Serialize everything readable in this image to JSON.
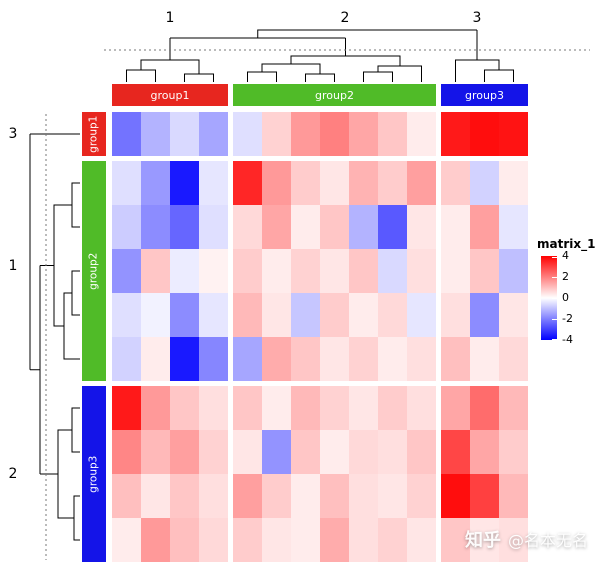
{
  "clusters": {
    "column": [
      "1",
      "2",
      "3"
    ],
    "row": [
      "3",
      "1",
      "2"
    ]
  },
  "column_annotation": {
    "groups": [
      {
        "label": "group1",
        "color": "#e7261f",
        "columns": 4
      },
      {
        "label": "group2",
        "color": "#50bb28",
        "columns": 7
      },
      {
        "label": "group3",
        "color": "#1414e8",
        "columns": 3
      }
    ]
  },
  "row_annotation": {
    "groups": [
      {
        "label": "group1",
        "color": "#e7261f",
        "rows": 1
      },
      {
        "label": "group2",
        "color": "#50bb28",
        "rows": 5
      },
      {
        "label": "group3",
        "color": "#1414e8",
        "rows": 4
      }
    ]
  },
  "legend": {
    "title": "matrix_1",
    "ticks": [
      4,
      2,
      0,
      -2,
      -4
    ],
    "max_color": "#FF0000",
    "mid_color": "#FFFFFF",
    "min_color": "#0000FF"
  },
  "watermark": {
    "brand": "知乎",
    "handle": "@名本无名"
  },
  "chart_data": {
    "type": "heatmap",
    "title": "",
    "legend_title": "matrix_1",
    "value_range": [
      -4,
      4
    ],
    "grid": false,
    "legend_position": "right",
    "row_slices": [
      {
        "name": "group1",
        "rows": 1
      },
      {
        "name": "group2",
        "rows": 5
      },
      {
        "name": "group3",
        "rows": 4
      }
    ],
    "column_slices": [
      {
        "name": "group1",
        "columns": 4
      },
      {
        "name": "group2",
        "columns": 7
      },
      {
        "name": "group3",
        "columns": 3
      }
    ],
    "color_scale": {
      "min": -4,
      "min_color": "#0000FF",
      "mid": 0,
      "mid_color": "#FFFFFF",
      "max": 4,
      "max_color": "#FF0000"
    },
    "matrix": [
      [
        -2.2,
        -1.2,
        -0.6,
        -1.4,
        -0.5,
        0.7,
        1.6,
        2.0,
        1.4,
        0.9,
        0.3,
        3.6,
        3.8,
        3.7
      ],
      [
        -0.5,
        -1.6,
        -3.6,
        -0.4,
        3.4,
        1.6,
        0.8,
        0.4,
        1.2,
        0.8,
        1.5,
        0.8,
        -0.7,
        0.3
      ],
      [
        -0.8,
        -1.8,
        -2.4,
        -0.5,
        0.6,
        1.4,
        0.3,
        0.9,
        -1.2,
        -2.6,
        0.4,
        0.3,
        1.5,
        -0.4
      ],
      [
        -1.7,
        0.9,
        -0.3,
        0.2,
        0.8,
        0.3,
        0.7,
        0.4,
        0.9,
        -0.6,
        0.5,
        0.3,
        0.9,
        -1.0
      ],
      [
        -0.5,
        -0.2,
        -1.8,
        -0.4,
        1.1,
        0.4,
        -0.9,
        0.8,
        0.3,
        0.6,
        -0.4,
        0.5,
        -1.8,
        0.4
      ],
      [
        -0.7,
        0.3,
        -3.6,
        -1.9,
        -1.4,
        1.3,
        0.9,
        0.4,
        0.7,
        0.3,
        0.5,
        1.0,
        0.3,
        0.6
      ],
      [
        3.6,
        1.6,
        0.9,
        0.5,
        0.9,
        0.3,
        1.1,
        0.7,
        0.4,
        0.8,
        0.5,
        1.4,
        2.3,
        1.1
      ],
      [
        1.9,
        1.1,
        1.5,
        0.7,
        0.4,
        -1.7,
        0.9,
        0.3,
        0.6,
        0.5,
        0.9,
        2.9,
        1.4,
        0.8
      ],
      [
        1.0,
        0.4,
        0.9,
        0.5,
        1.5,
        0.8,
        0.3,
        1.0,
        0.5,
        0.4,
        0.7,
        3.8,
        3.0,
        1.1
      ],
      [
        0.3,
        1.6,
        1.0,
        0.6,
        0.8,
        0.4,
        0.3,
        1.3,
        0.5,
        0.7,
        0.4,
        0.9,
        0.4,
        0.5
      ]
    ]
  }
}
